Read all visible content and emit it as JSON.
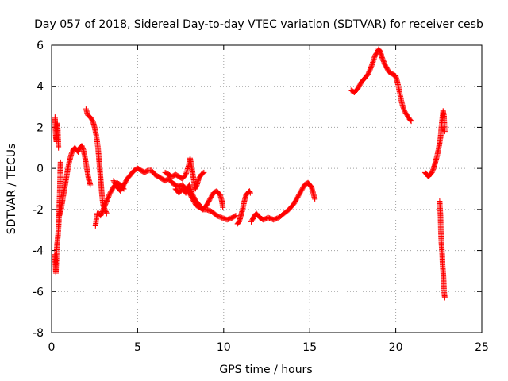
{
  "chart_data": {
    "type": "scatter",
    "title": "Day 057 of 2018, Sidereal Day-to-day VTEC variation (SDTVAR) for receiver cesb",
    "xlabel": "GPS time / hours",
    "ylabel": "SDTVAR / TECUs",
    "xlim": [
      0,
      25
    ],
    "ylim": [
      -8,
      6
    ],
    "xticks": [
      0,
      5,
      10,
      15,
      20,
      25
    ],
    "yticks": [
      -8,
      -6,
      -4,
      -2,
      0,
      2,
      4,
      6
    ],
    "xtick_labels": [
      "0",
      "5",
      "10",
      "15",
      "20",
      "25"
    ],
    "ytick_labels": [
      "-8",
      "-6",
      "-4",
      "-2",
      "0",
      "2",
      "4",
      "6"
    ],
    "grid": true,
    "marker": "plus",
    "color": "#ff0000",
    "series": [
      {
        "segments": [
          [
            [
              0.2,
              2.5
            ],
            [
              0.22,
              2.0
            ],
            [
              0.25,
              1.5
            ],
            [
              0.28,
              1.3
            ],
            [
              0.32,
              2.2
            ],
            [
              0.36,
              1.9
            ],
            [
              0.4,
              1.0
            ]
          ],
          [
            [
              0.2,
              -4.2
            ],
            [
              0.22,
              -4.7
            ],
            [
              0.25,
              -5.1
            ],
            [
              0.28,
              -4.5
            ],
            [
              0.3,
              -3.9
            ],
            [
              0.33,
              -3.6
            ],
            [
              0.38,
              -3.2
            ],
            [
              0.42,
              -2.6
            ],
            [
              0.45,
              -1.8
            ],
            [
              0.48,
              -1.0
            ],
            [
              0.5,
              -0.2
            ],
            [
              0.52,
              0.3
            ]
          ],
          [
            [
              0.45,
              -2.3
            ],
            [
              0.55,
              -2.0
            ],
            [
              0.65,
              -1.5
            ],
            [
              0.75,
              -1.0
            ],
            [
              0.85,
              -0.5
            ],
            [
              0.95,
              0.0
            ],
            [
              1.05,
              0.4
            ],
            [
              1.15,
              0.7
            ],
            [
              1.25,
              0.9
            ],
            [
              1.35,
              1.0
            ],
            [
              1.45,
              0.9
            ],
            [
              1.55,
              0.8
            ],
            [
              1.65,
              1.0
            ],
            [
              1.75,
              1.1
            ],
            [
              1.85,
              0.9
            ],
            [
              1.95,
              0.5
            ],
            [
              2.05,
              0.0
            ],
            [
              2.15,
              -0.5
            ],
            [
              2.25,
              -0.8
            ]
          ],
          [
            [
              2.0,
              2.9
            ],
            [
              2.1,
              2.6
            ],
            [
              2.25,
              2.5
            ],
            [
              2.4,
              2.3
            ],
            [
              2.5,
              2.0
            ],
            [
              2.6,
              1.6
            ],
            [
              2.7,
              1.0
            ],
            [
              2.75,
              0.5
            ],
            [
              2.8,
              0.0
            ],
            [
              2.85,
              -0.5
            ],
            [
              2.9,
              -1.0
            ],
            [
              2.95,
              -1.5
            ],
            [
              3.0,
              -1.8
            ],
            [
              3.1,
              -2.0
            ],
            [
              3.2,
              -2.2
            ]
          ],
          [
            [
              2.55,
              -2.8
            ],
            [
              2.6,
              -2.5
            ],
            [
              2.65,
              -2.2
            ],
            [
              2.75,
              -2.2
            ],
            [
              2.85,
              -2.3
            ],
            [
              3.0,
              -2.0
            ],
            [
              3.2,
              -1.6
            ],
            [
              3.4,
              -1.2
            ],
            [
              3.6,
              -0.9
            ],
            [
              3.8,
              -0.7
            ],
            [
              4.0,
              -0.8
            ],
            [
              4.2,
              -1.0
            ]
          ],
          [
            [
              3.6,
              -0.6
            ],
            [
              3.8,
              -0.9
            ],
            [
              4.0,
              -1.1
            ],
            [
              4.2,
              -0.8
            ],
            [
              4.4,
              -0.5
            ],
            [
              4.6,
              -0.3
            ],
            [
              4.8,
              -0.1
            ],
            [
              5.0,
              0.0
            ],
            [
              5.2,
              -0.1
            ],
            [
              5.4,
              -0.2
            ],
            [
              5.6,
              -0.1
            ],
            [
              5.8,
              -0.1
            ],
            [
              6.0,
              -0.3
            ],
            [
              6.2,
              -0.4
            ],
            [
              6.4,
              -0.5
            ],
            [
              6.6,
              -0.6
            ],
            [
              6.8,
              -0.5
            ],
            [
              7.0,
              -0.7
            ],
            [
              7.2,
              -0.8
            ],
            [
              7.4,
              -0.9
            ],
            [
              7.6,
              -0.8
            ],
            [
              7.8,
              -1.0
            ],
            [
              8.0,
              -1.2
            ],
            [
              8.2,
              -1.5
            ],
            [
              8.4,
              -1.8
            ],
            [
              8.6,
              -1.9
            ],
            [
              8.8,
              -2.0
            ],
            [
              9.0,
              -2.0
            ]
          ],
          [
            [
              6.6,
              -0.2
            ],
            [
              6.8,
              -0.3
            ],
            [
              7.0,
              -0.4
            ],
            [
              7.2,
              -0.3
            ],
            [
              7.4,
              -0.4
            ],
            [
              7.6,
              -0.5
            ],
            [
              7.8,
              -0.3
            ],
            [
              7.95,
              0.1
            ],
            [
              8.05,
              0.5
            ],
            [
              8.15,
              0.0
            ],
            [
              8.25,
              -0.5
            ],
            [
              8.35,
              -1.0
            ],
            [
              8.45,
              -0.8
            ],
            [
              8.55,
              -0.5
            ],
            [
              8.7,
              -0.3
            ],
            [
              8.85,
              -0.2
            ]
          ],
          [
            [
              7.2,
              -1.0
            ],
            [
              7.4,
              -1.2
            ],
            [
              7.6,
              -1.0
            ],
            [
              7.8,
              -1.2
            ],
            [
              8.0,
              -0.8
            ],
            [
              8.2,
              -1.3
            ],
            [
              8.4,
              -1.6
            ],
            [
              8.6,
              -1.8
            ],
            [
              8.8,
              -2.0
            ],
            [
              9.0,
              -1.8
            ],
            [
              9.2,
              -1.5
            ],
            [
              9.4,
              -1.2
            ],
            [
              9.6,
              -1.1
            ],
            [
              9.8,
              -1.3
            ],
            [
              9.9,
              -1.6
            ],
            [
              9.95,
              -1.9
            ]
          ],
          [
            [
              9.0,
              -2.0
            ],
            [
              9.3,
              -2.1
            ],
            [
              9.6,
              -2.3
            ],
            [
              9.9,
              -2.4
            ],
            [
              10.2,
              -2.5
            ],
            [
              10.5,
              -2.4
            ],
            [
              10.7,
              -2.3
            ]
          ],
          [
            [
              10.8,
              -2.7
            ],
            [
              10.9,
              -2.6
            ],
            [
              11.0,
              -2.3
            ],
            [
              11.1,
              -2.0
            ],
            [
              11.2,
              -1.6
            ],
            [
              11.3,
              -1.3
            ],
            [
              11.4,
              -1.2
            ],
            [
              11.5,
              -1.1
            ],
            [
              11.55,
              -1.2
            ]
          ],
          [
            [
              11.6,
              -2.6
            ],
            [
              11.8,
              -2.3
            ],
            [
              11.9,
              -2.2
            ],
            [
              12.1,
              -2.4
            ],
            [
              12.3,
              -2.5
            ],
            [
              12.6,
              -2.4
            ],
            [
              12.9,
              -2.5
            ],
            [
              13.2,
              -2.4
            ],
            [
              13.5,
              -2.2
            ],
            [
              13.8,
              -2.0
            ],
            [
              14.1,
              -1.7
            ],
            [
              14.3,
              -1.4
            ],
            [
              14.5,
              -1.1
            ],
            [
              14.7,
              -0.8
            ],
            [
              14.9,
              -0.7
            ],
            [
              15.0,
              -0.8
            ],
            [
              15.1,
              -0.9
            ],
            [
              15.2,
              -1.2
            ],
            [
              15.3,
              -1.5
            ]
          ],
          [
            [
              17.4,
              3.8
            ],
            [
              17.6,
              3.7
            ],
            [
              17.8,
              3.9
            ],
            [
              18.0,
              4.2
            ],
            [
              18.2,
              4.4
            ],
            [
              18.4,
              4.6
            ],
            [
              18.6,
              5.0
            ],
            [
              18.8,
              5.5
            ],
            [
              19.0,
              5.8
            ],
            [
              19.1,
              5.7
            ],
            [
              19.2,
              5.4
            ],
            [
              19.4,
              5.0
            ],
            [
              19.6,
              4.7
            ],
            [
              19.8,
              4.6
            ],
            [
              20.0,
              4.5
            ],
            [
              20.1,
              4.2
            ],
            [
              20.2,
              3.8
            ],
            [
              20.35,
              3.2
            ],
            [
              20.5,
              2.8
            ],
            [
              20.65,
              2.6
            ],
            [
              20.8,
              2.4
            ],
            [
              20.9,
              2.3
            ]
          ],
          [
            [
              21.7,
              -0.2
            ],
            [
              21.8,
              -0.3
            ],
            [
              21.9,
              -0.4
            ],
            [
              22.0,
              -0.3
            ],
            [
              22.1,
              -0.2
            ],
            [
              22.2,
              0.0
            ],
            [
              22.3,
              0.3
            ],
            [
              22.4,
              0.6
            ],
            [
              22.5,
              1.0
            ],
            [
              22.6,
              1.5
            ],
            [
              22.65,
              2.0
            ],
            [
              22.7,
              2.4
            ],
            [
              22.75,
              2.8
            ],
            [
              22.8,
              2.6
            ],
            [
              22.85,
              1.8
            ]
          ],
          [
            [
              22.55,
              -1.6
            ],
            [
              22.6,
              -2.3
            ],
            [
              22.62,
              -3.0
            ],
            [
              22.65,
              -3.6
            ],
            [
              22.7,
              -4.2
            ],
            [
              22.72,
              -4.7
            ],
            [
              22.75,
              -5.0
            ],
            [
              22.78,
              -5.4
            ],
            [
              22.8,
              -5.8
            ],
            [
              22.82,
              -6.1
            ],
            [
              22.85,
              -6.3
            ]
          ]
        ]
      }
    ]
  }
}
